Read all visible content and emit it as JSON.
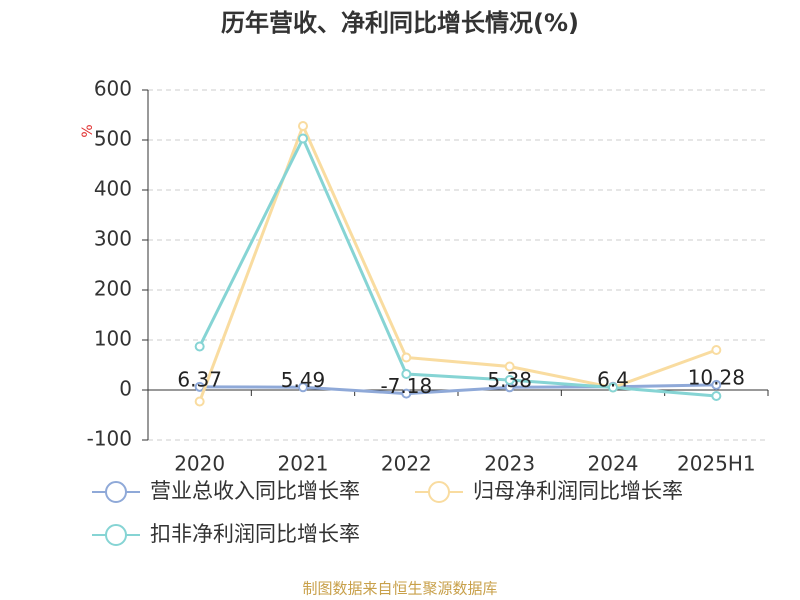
{
  "chart_data": {
    "type": "line",
    "title": "历年营收、净利同比增长情况(%)",
    "y_label": "%",
    "categories": [
      "2020",
      "2021",
      "2022",
      "2023",
      "2024",
      "2025H1"
    ],
    "series": [
      {
        "name": "营业总收入同比增长率",
        "color": "#8fa9d8",
        "values": [
          6.37,
          5.49,
          -7.18,
          5.38,
          6.4,
          10.28
        ],
        "data_labels": true
      },
      {
        "name": "归母净利润同比增长率",
        "color": "#f9dca0",
        "values": [
          -23,
          528,
          65,
          47,
          5,
          80
        ],
        "data_labels": false
      },
      {
        "name": "扣非净利润同比增长率",
        "color": "#86d4d4",
        "values": [
          87,
          503,
          32,
          20,
          5,
          -12
        ],
        "data_labels": false
      }
    ],
    "ylim": [
      -100,
      600
    ],
    "yticks": [
      -100,
      0,
      100,
      200,
      300,
      400,
      500,
      600
    ],
    "grid": true,
    "source": "制图数据来自恒生聚源数据库"
  }
}
